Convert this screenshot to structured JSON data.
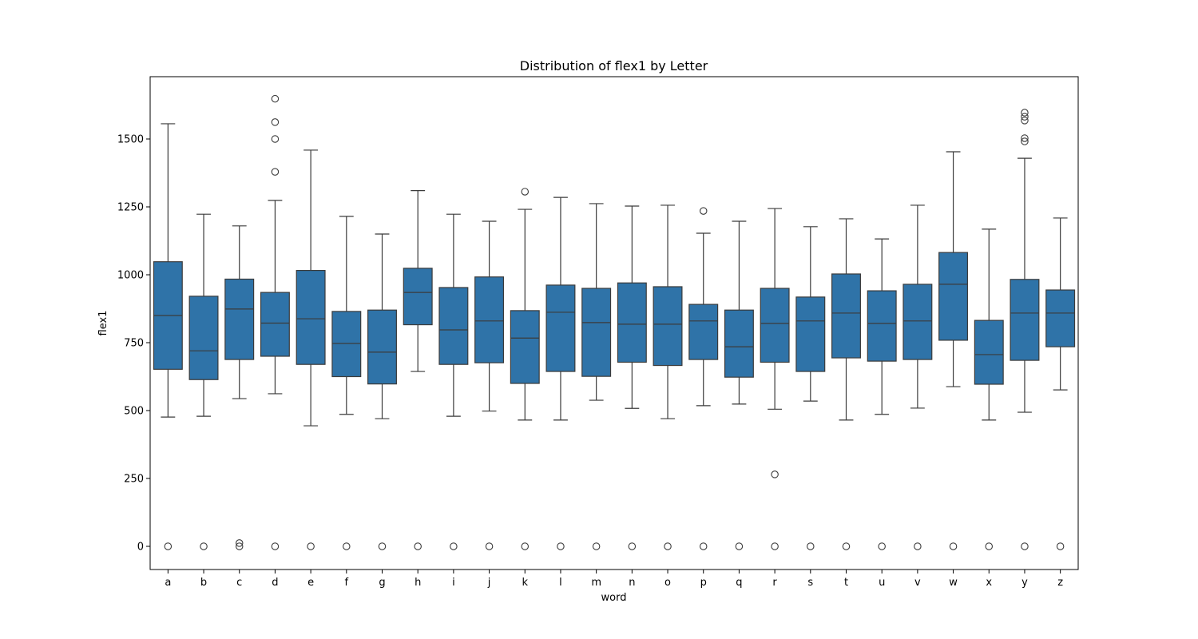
{
  "chart_data": {
    "type": "box",
    "title": "Distribution of flex1 by Letter",
    "xlabel": "word",
    "ylabel": "flex1",
    "ylim": [
      -75,
      1720
    ],
    "yticks": [
      0,
      250,
      500,
      750,
      1000,
      1250,
      1500
    ],
    "grid": false,
    "box_color": "#2f73a8",
    "categories": [
      "a",
      "b",
      "c",
      "d",
      "e",
      "f",
      "g",
      "h",
      "i",
      "j",
      "k",
      "l",
      "m",
      "n",
      "o",
      "p",
      "q",
      "r",
      "s",
      "t",
      "u",
      "v",
      "w",
      "x",
      "y",
      "z"
    ],
    "boxes": [
      {
        "q1": 652,
        "median": 850,
        "q3": 1048,
        "whislo": 476,
        "whishi": 1556,
        "fliers": [
          0
        ]
      },
      {
        "q1": 614,
        "median": 720,
        "q3": 921,
        "whislo": 479,
        "whishi": 1223,
        "fliers": [
          0
        ]
      },
      {
        "q1": 688,
        "median": 874,
        "q3": 984,
        "whislo": 544,
        "whishi": 1180,
        "fliers": [
          0,
          12
        ]
      },
      {
        "q1": 700,
        "median": 822,
        "q3": 935,
        "whislo": 562,
        "whishi": 1274,
        "fliers": [
          0,
          1379,
          1500,
          1562,
          1648
        ]
      },
      {
        "q1": 670,
        "median": 838,
        "q3": 1016,
        "whislo": 444,
        "whishi": 1459,
        "fliers": [
          0
        ]
      },
      {
        "q1": 625,
        "median": 747,
        "q3": 865,
        "whislo": 486,
        "whishi": 1215,
        "fliers": [
          0
        ]
      },
      {
        "q1": 598,
        "median": 715,
        "q3": 870,
        "whislo": 470,
        "whishi": 1150,
        "fliers": [
          0
        ]
      },
      {
        "q1": 816,
        "median": 935,
        "q3": 1024,
        "whislo": 644,
        "whishi": 1310,
        "fliers": [
          0
        ]
      },
      {
        "q1": 670,
        "median": 797,
        "q3": 953,
        "whislo": 479,
        "whishi": 1223,
        "fliers": [
          0
        ]
      },
      {
        "q1": 676,
        "median": 830,
        "q3": 992,
        "whislo": 498,
        "whishi": 1197,
        "fliers": [
          0
        ]
      },
      {
        "q1": 600,
        "median": 767,
        "q3": 868,
        "whislo": 465,
        "whishi": 1241,
        "fliers": [
          0,
          1306
        ]
      },
      {
        "q1": 644,
        "median": 862,
        "q3": 962,
        "whislo": 465,
        "whishi": 1285,
        "fliers": [
          0
        ]
      },
      {
        "q1": 626,
        "median": 824,
        "q3": 950,
        "whislo": 538,
        "whishi": 1262,
        "fliers": [
          0
        ]
      },
      {
        "q1": 678,
        "median": 818,
        "q3": 970,
        "whislo": 508,
        "whishi": 1253,
        "fliers": [
          0
        ]
      },
      {
        "q1": 666,
        "median": 818,
        "q3": 956,
        "whislo": 470,
        "whishi": 1256,
        "fliers": [
          0
        ]
      },
      {
        "q1": 688,
        "median": 830,
        "q3": 891,
        "whislo": 518,
        "whishi": 1153,
        "fliers": [
          0,
          1235
        ]
      },
      {
        "q1": 623,
        "median": 735,
        "q3": 870,
        "whislo": 524,
        "whishi": 1197,
        "fliers": [
          0
        ]
      },
      {
        "q1": 678,
        "median": 821,
        "q3": 950,
        "whislo": 505,
        "whishi": 1244,
        "fliers": [
          0,
          265
        ]
      },
      {
        "q1": 644,
        "median": 830,
        "q3": 918,
        "whislo": 535,
        "whishi": 1177,
        "fliers": [
          0
        ]
      },
      {
        "q1": 694,
        "median": 859,
        "q3": 1003,
        "whislo": 465,
        "whishi": 1206,
        "fliers": [
          0
        ]
      },
      {
        "q1": 682,
        "median": 821,
        "q3": 941,
        "whislo": 486,
        "whishi": 1132,
        "fliers": [
          0
        ]
      },
      {
        "q1": 688,
        "median": 830,
        "q3": 965,
        "whislo": 509,
        "whishi": 1256,
        "fliers": [
          0
        ]
      },
      {
        "q1": 759,
        "median": 965,
        "q3": 1082,
        "whislo": 588,
        "whishi": 1453,
        "fliers": [
          0
        ]
      },
      {
        "q1": 597,
        "median": 706,
        "q3": 832,
        "whislo": 465,
        "whishi": 1168,
        "fliers": [
          0
        ]
      },
      {
        "q1": 685,
        "median": 859,
        "q3": 983,
        "whislo": 494,
        "whishi": 1429,
        "fliers": [
          0,
          1491,
          1503,
          1568,
          1582,
          1597
        ]
      },
      {
        "q1": 735,
        "median": 859,
        "q3": 944,
        "whislo": 576,
        "whishi": 1209,
        "fliers": [
          0
        ]
      }
    ]
  }
}
